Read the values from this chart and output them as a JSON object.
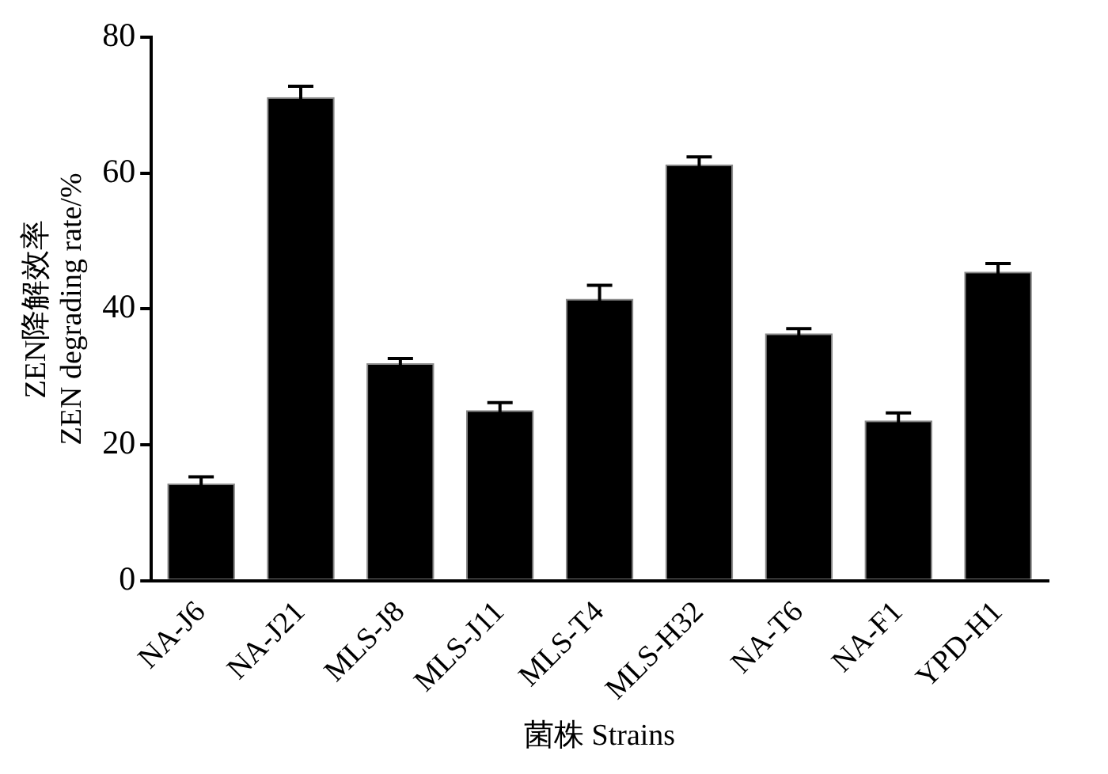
{
  "chart_data": {
    "type": "bar",
    "categories": [
      "NA-J6",
      "NA-J21",
      "MLS-J8",
      "MLS-J11",
      "MLS-T4",
      "MLS-H32",
      "NA-T6",
      "NA-F1",
      "YPD-H1"
    ],
    "values": [
      14.3,
      71.2,
      32.0,
      25.1,
      41.5,
      61.3,
      36.4,
      23.6,
      45.5
    ],
    "errors": [
      1.0,
      1.6,
      0.7,
      1.1,
      2.0,
      1.1,
      0.7,
      1.1,
      1.2
    ],
    "color": "#000000",
    "xlabel": "菌株 Strains",
    "ylabel": "ZEN降解效率\nZEN degrading rate/%",
    "ylim": [
      0,
      80
    ],
    "yticks": [
      0,
      20,
      40,
      60,
      80
    ],
    "grid": false,
    "legend": false
  }
}
